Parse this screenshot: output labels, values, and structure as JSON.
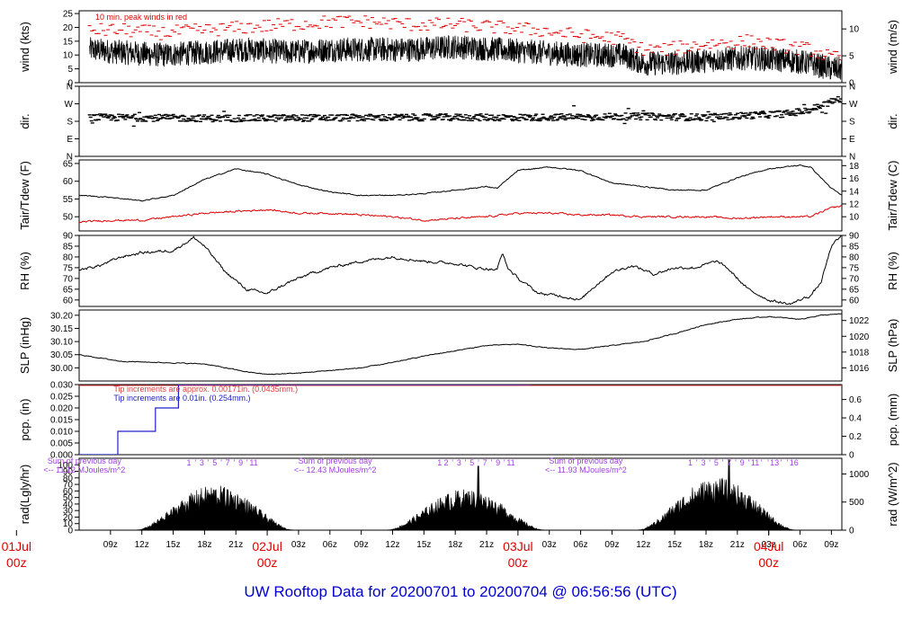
{
  "title": "UW Rooftop Data for 20200701  to  20200704 @ 06:56:56  (UTC)",
  "colors": {
    "title": "#0000cc",
    "peak": "#e00000",
    "dew": "#e00000",
    "day_label": "#e00000",
    "annotation": "#a040e0",
    "tip_red": "#e04040",
    "tip_blue": "#2020cc",
    "line": "#000000"
  },
  "chart_data": {
    "type": "line",
    "x_axis": {
      "xlim": [
        6,
        79
      ],
      "hour_ticks": [
        9,
        12,
        15,
        18,
        21,
        27,
        30,
        33,
        36,
        39,
        42,
        45,
        51,
        54,
        57,
        60,
        63,
        66,
        69,
        72,
        75,
        78
      ],
      "hour_tick_labels": [
        "09z",
        "12z",
        "15z",
        "18z",
        "21z",
        "03z",
        "06z",
        "09z",
        "12z",
        "15z",
        "18z",
        "21z",
        "03z",
        "06z",
        "09z",
        "12z",
        "15z",
        "18z",
        "21z",
        "03z",
        "06z",
        "09z"
      ],
      "day_labels": [
        {
          "hour": 0,
          "day": "01Jul",
          "time": "00z"
        },
        {
          "hour": 24,
          "day": "02Jul",
          "time": "00z"
        },
        {
          "hour": 48,
          "day": "03Jul",
          "time": "00z"
        },
        {
          "hour": 72,
          "day": "04Jul",
          "time": "00z"
        }
      ]
    },
    "panels": [
      {
        "id": "wind",
        "ylabel": "wind (kts)",
        "ylabel_right": "wind (m/s)",
        "ylim": [
          0,
          26
        ],
        "yticks": [
          0,
          5,
          10,
          15,
          20,
          25
        ],
        "yticks_right": [
          {
            "value": 0,
            "label": "0"
          },
          {
            "value": 9.72,
            "label": "5"
          },
          {
            "value": 19.44,
            "label": "10"
          }
        ],
        "annotation": "10 min. peak winds in red",
        "series": [
          {
            "name": "wind speed",
            "color": "#000000",
            "x": [
              7,
              10,
              14,
              18,
              22,
              26,
              30,
              34,
              38,
              42,
              46,
              50,
              54,
              58,
              60,
              62,
              66,
              70,
              74,
              76,
              78,
              79
            ],
            "y": [
              12,
              11,
              10,
              11,
              12,
              11,
              12,
              12,
              12,
              13,
              12,
              11,
              10,
              10,
              7,
              7,
              8,
              9,
              8,
              7,
              5,
              5
            ],
            "noise": 4.5
          },
          {
            "name": "10 min peak",
            "color": "#e00000",
            "x": [
              7,
              10,
              14,
              18,
              22,
              26,
              30,
              34,
              38,
              42,
              46,
              50,
              54,
              58,
              60,
              62,
              66,
              70,
              74,
              76,
              78,
              79
            ],
            "y": [
              19,
              19,
              18,
              19,
              20,
              21,
              22,
              22,
              21,
              21,
              20,
              19,
              17,
              16,
              12,
              12,
              14,
              15,
              13,
              12,
              9,
              9
            ],
            "noise": 2.5
          }
        ]
      },
      {
        "id": "dir",
        "ylabel": "dir.",
        "ylabel_right": "dir.",
        "ylim": [
          0,
          360
        ],
        "ytick_values": [
          0,
          90,
          180,
          270,
          360
        ],
        "ytick_labels": [
          "N",
          "E",
          "S",
          "W",
          "N"
        ],
        "series": [
          {
            "name": "direction",
            "color": "#000000",
            "x": [
              7,
              20,
              30,
              40,
              50,
              60,
              66,
              70,
              74,
              76,
              77,
              78,
              79
            ],
            "y": [
              200,
              195,
              198,
              200,
              200,
              205,
              200,
              210,
              220,
              240,
              260,
              280,
              300
            ],
            "noise": 18
          }
        ]
      },
      {
        "id": "temp",
        "ylabel": "Tair/Tdew (F)",
        "ylabel_right": "Tair/Tdew (C)",
        "ylim": [
          46,
          66
        ],
        "yticks": [
          50,
          55,
          60,
          65
        ],
        "yticks_right": [
          {
            "value": 50,
            "label": "10"
          },
          {
            "value": 53.6,
            "label": "12"
          },
          {
            "value": 57.2,
            "label": "14"
          },
          {
            "value": 60.8,
            "label": "16"
          },
          {
            "value": 64.4,
            "label": "18"
          }
        ],
        "series": [
          {
            "name": "Tair",
            "color": "#000000",
            "x": [
              6,
              9,
              12,
              15,
              18,
              21,
              24,
              27,
              30,
              33,
              36,
              39,
              42,
              45,
              46,
              48,
              51,
              54,
              57,
              60,
              63,
              66,
              69,
              72,
              75,
              76,
              78,
              79
            ],
            "y": [
              56,
              55.5,
              54.5,
              56,
              60.5,
              63.5,
              62,
              59,
              57,
              56,
              56,
              56.5,
              57.5,
              58.5,
              58,
              63,
              64,
              63,
              59.5,
              58.5,
              57.5,
              57.5,
              61,
              63.5,
              64.5,
              64,
              58,
              56
            ],
            "noise": 0.3
          },
          {
            "name": "Tdew",
            "color": "#e00000",
            "x": [
              6,
              9,
              12,
              15,
              18,
              21,
              24,
              27,
              30,
              33,
              36,
              39,
              42,
              45,
              48,
              51,
              54,
              57,
              60,
              63,
              66,
              69,
              72,
              75,
              76,
              78,
              79
            ],
            "y": [
              48.5,
              49,
              49,
              50,
              51,
              51.5,
              52,
              51,
              51,
              50.5,
              50,
              49,
              49.5,
              50,
              51,
              51,
              50.5,
              50.5,
              50,
              50,
              50,
              49.5,
              50,
              50,
              50,
              52.5,
              53
            ],
            "noise": 0.5
          }
        ]
      },
      {
        "id": "rh",
        "ylabel": "RH (%)",
        "ylabel_right": "RH (%)",
        "ylim": [
          57,
          90
        ],
        "yticks": [
          60,
          65,
          70,
          75,
          80,
          85,
          90
        ],
        "yticks_right": [
          {
            "value": 60,
            "label": "60"
          },
          {
            "value": 65,
            "label": "65"
          },
          {
            "value": 70,
            "label": "70"
          },
          {
            "value": 75,
            "label": "75"
          },
          {
            "value": 80,
            "label": "80"
          },
          {
            "value": 85,
            "label": "85"
          },
          {
            "value": 90,
            "label": "90"
          }
        ],
        "series": [
          {
            "name": "RH",
            "color": "#000000",
            "x": [
              6,
              8,
              10,
              12,
              15,
              17,
              18,
              20,
              22,
              24,
              26,
              28,
              30,
              33,
              36,
              39,
              42,
              44,
              46,
              46.5,
              47,
              48,
              50,
              52,
              54,
              55,
              57,
              59,
              61,
              63,
              65,
              67,
              68,
              70,
              72,
              74,
              75,
              76,
              77,
              78,
              79
            ],
            "y": [
              74,
              76,
              80,
              82,
              83,
              89,
              85,
              73,
              65,
              63,
              68,
              72,
              75,
              78,
              80,
              78,
              77,
              75,
              74,
              82,
              75,
              70,
              63,
              62,
              60,
              65,
              73,
              76,
              72,
              75,
              75,
              78,
              75,
              65,
              60,
              58,
              60,
              62,
              68,
              85,
              90
            ],
            "noise": 1.2
          }
        ]
      },
      {
        "id": "slp",
        "ylabel": "SLP (inHg)",
        "ylabel_right": "SLP (hPa)",
        "ylim": [
          29.95,
          30.22
        ],
        "yticks": [
          30.0,
          30.05,
          30.1,
          30.15,
          30.2
        ],
        "ytick_labels": [
          "30.00",
          "30.05",
          "30.10",
          "30.15",
          "30.20"
        ],
        "yticks_right": [
          {
            "value": 30.0,
            "label": "1016"
          },
          {
            "value": 30.06,
            "label": "1018"
          },
          {
            "value": 30.12,
            "label": "1020"
          },
          {
            "value": 30.18,
            "label": "1022"
          }
        ],
        "series": [
          {
            "name": "SLP",
            "color": "#000000",
            "x": [
              6,
              10,
              14,
              18,
              22,
              24,
              27,
              30,
              33,
              36,
              39,
              42,
              45,
              48,
              51,
              54,
              57,
              60,
              63,
              66,
              69,
              72,
              75,
              77,
              79
            ],
            "y": [
              30.05,
              30.025,
              30.02,
              30.015,
              29.985,
              29.975,
              29.98,
              29.99,
              30.0,
              30.02,
              30.045,
              30.065,
              30.085,
              30.09,
              30.075,
              30.07,
              30.085,
              30.1,
              30.13,
              30.165,
              30.185,
              30.195,
              30.185,
              30.2,
              30.205
            ],
            "noise": 0.003
          }
        ]
      },
      {
        "id": "pcp",
        "ylabel": "pcp. (in)",
        "ylabel_right": "pcp. (mm)",
        "ylim": [
          0,
          0.03
        ],
        "yticks": [
          0,
          0.005,
          0.01,
          0.015,
          0.02,
          0.025,
          0.03
        ],
        "ytick_labels": [
          "0.000",
          "0.005",
          "0.010",
          "0.015",
          "0.020",
          "0.025",
          "0.030"
        ],
        "yticks_right": [
          {
            "value": 0,
            "label": "0"
          },
          {
            "value": 0.00787,
            "label": "0.2"
          },
          {
            "value": 0.01575,
            "label": "0.4"
          },
          {
            "value": 0.02362,
            "label": "0.6"
          }
        ],
        "notes": [
          {
            "text": "Tip increments are approx. 0.00171in. (0.0435mm.)",
            "color": "#e04040"
          },
          {
            "text": "Tip increments are 0.01in. (0.254mm.)",
            "color": "#2020cc"
          }
        ],
        "series": [
          {
            "name": "accumulated precip",
            "color": "#2020cc",
            "step": true,
            "x": [
              6,
              9.7,
              11.2,
              13.3,
              15.5,
              49.2
            ],
            "y": [
              0,
              0.01,
              0.01,
              0.02,
              0.03,
              0.03
            ]
          }
        ]
      },
      {
        "id": "rad",
        "ylabel": "rad(Lgly/hr)",
        "ylabel_right": "rad (W/m^2)",
        "ylim": [
          0,
          110
        ],
        "yticks": [
          0,
          10,
          20,
          30,
          40,
          50,
          60,
          70,
          80,
          90,
          100
        ],
        "yticks_right": [
          {
            "value": 0,
            "label": "0"
          },
          {
            "value": 43,
            "label": "500"
          },
          {
            "value": 86,
            "label": "1000"
          }
        ],
        "type": "area",
        "days": [
          {
            "start": 11.5,
            "end": 26.5,
            "peak": 60,
            "spike": 62
          },
          {
            "start": 35.5,
            "end": 50.5,
            "peak": 55,
            "spike": 98
          },
          {
            "start": 59.5,
            "end": 74.5,
            "peak": 70,
            "spike": 108
          }
        ],
        "sums": [
          {
            "hour": 1,
            "line1": "Sum of previous day",
            "line2": "<-- 11.12 MJoules/m^2"
          },
          {
            "hour": 25,
            "line1": "Sum of previous day",
            "line2": "<-- 12.43 MJoules/m^2"
          },
          {
            "hour": 49,
            "line1": "Sum of previous day",
            "line2": "<-- 11.93 MJoules/m^2"
          }
        ],
        "hour_marks": [
          {
            "start": 16.5,
            "labels": [
              "1",
              "'",
              "3",
              "'",
              "5",
              "'",
              "7",
              "'",
              "9",
              "'",
              "11"
            ]
          },
          {
            "start": 40.5,
            "labels": [
              "1",
              "2",
              "'",
              "3",
              "'",
              "5",
              "'",
              "7",
              "'",
              "9",
              "'",
              "11"
            ]
          },
          {
            "start": 64.5,
            "labels": [
              "1",
              "'",
              "3",
              "'",
              "5",
              "'",
              "7",
              "'",
              "9",
              "'",
              "11",
              "'",
              "'",
              "13",
              "'",
              "'",
              "16"
            ]
          }
        ]
      }
    ]
  }
}
